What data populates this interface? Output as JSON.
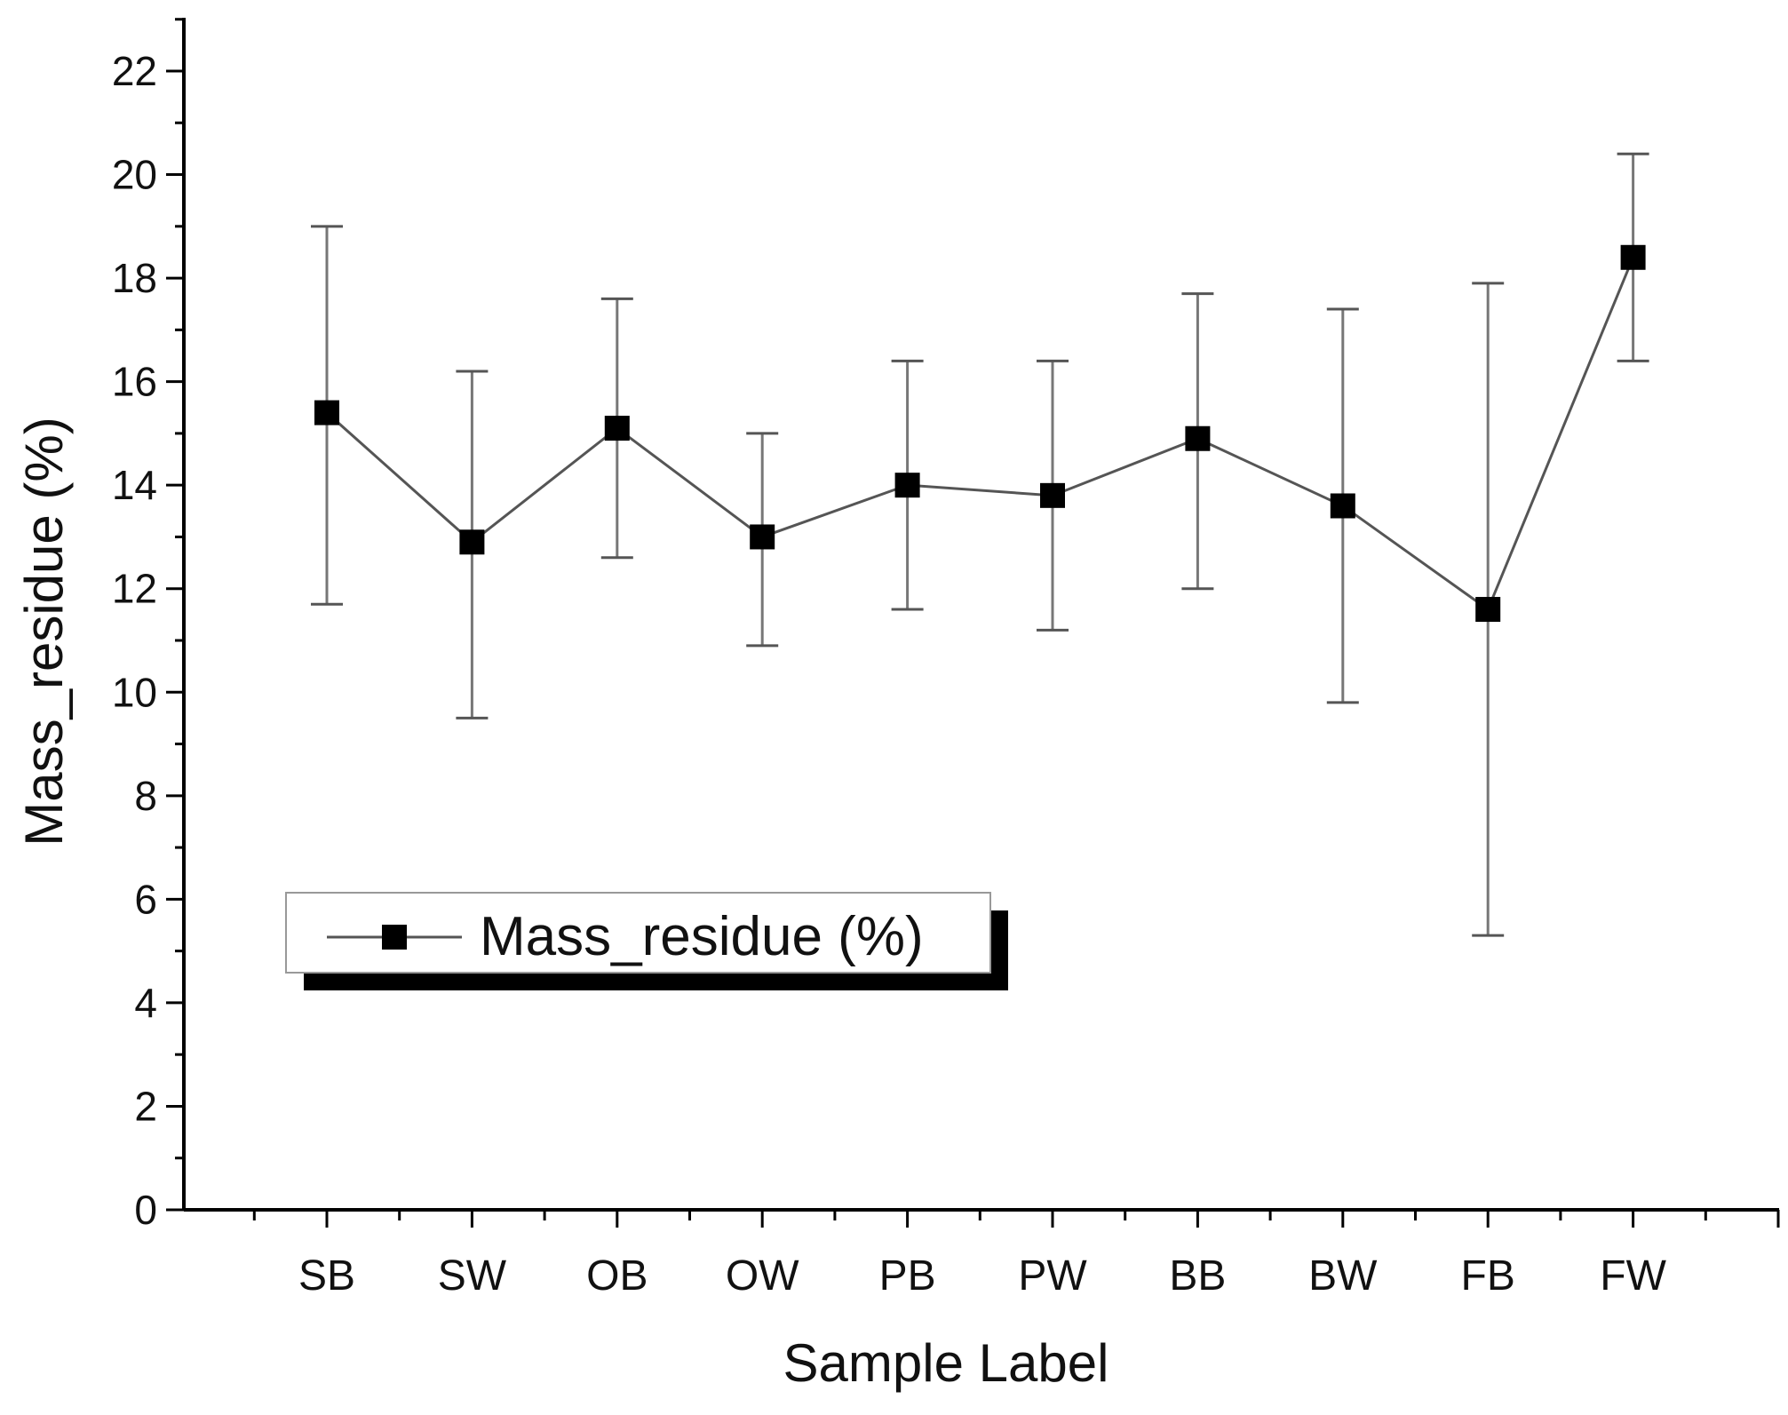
{
  "chart_data": {
    "type": "line",
    "title": "",
    "xlabel": "Sample Label",
    "ylabel": "Mass_residue (%)",
    "categories": [
      "SB",
      "SW",
      "OB",
      "OW",
      "PB",
      "PW",
      "BB",
      "BW",
      "FB",
      "FW"
    ],
    "series": [
      {
        "name": "Mass_residue (%)",
        "values": [
          15.4,
          12.9,
          15.1,
          13.0,
          14.0,
          13.8,
          14.9,
          13.6,
          11.6,
          18.4
        ],
        "error_upper": [
          19.0,
          16.2,
          17.6,
          15.0,
          16.4,
          16.4,
          17.7,
          17.4,
          17.9,
          20.4
        ],
        "error_lower": [
          11.7,
          9.5,
          12.6,
          10.9,
          11.6,
          11.2,
          12.0,
          9.8,
          5.3,
          16.4
        ],
        "marker": "square",
        "color": "#000000",
        "line_color": "#555555"
      }
    ],
    "ylim": [
      0,
      23
    ],
    "yticks": [
      0,
      2,
      4,
      6,
      8,
      10,
      12,
      14,
      16,
      18,
      20,
      22
    ],
    "y_minor_step": 1,
    "legend": {
      "label": "Mass_residue (%)",
      "position": "bottom-left"
    },
    "grid": false
  }
}
